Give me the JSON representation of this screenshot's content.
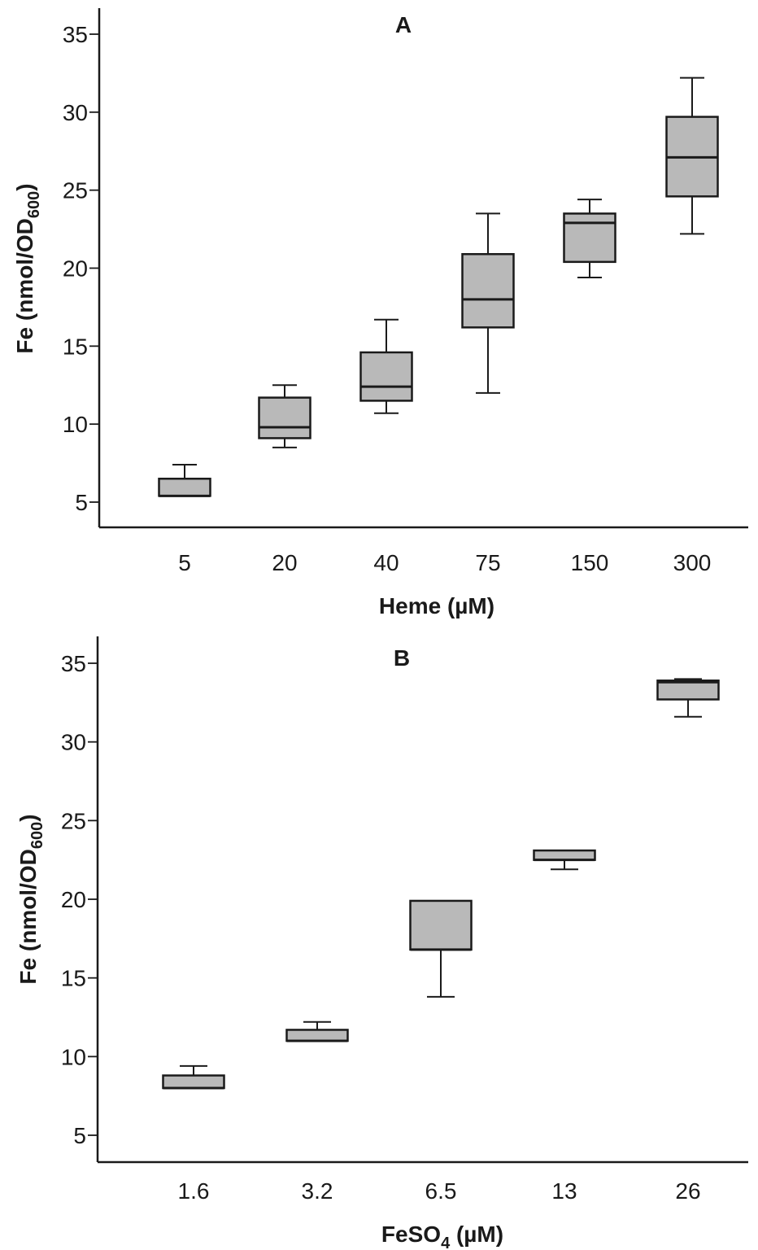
{
  "chart_data": [
    {
      "type": "box",
      "panel_label": "A",
      "xlabel": "Heme (µM)",
      "ylabel_main": "Fe (nmol/OD",
      "ylabel_sub": "600",
      "ylabel_end": ")",
      "ylim": [
        3.5,
        36.5
      ],
      "yticks": [
        5,
        10,
        15,
        20,
        25,
        30,
        35
      ],
      "categories": [
        "5",
        "20",
        "40",
        "75",
        "150",
        "300"
      ],
      "boxes": [
        {
          "min": 5.4,
          "q1": 5.4,
          "median": 5.4,
          "q3": 6.5,
          "max": 7.4
        },
        {
          "min": 8.5,
          "q1": 9.1,
          "median": 9.8,
          "q3": 11.7,
          "max": 12.5
        },
        {
          "min": 10.7,
          "q1": 11.5,
          "median": 12.4,
          "q3": 14.6,
          "max": 16.7
        },
        {
          "min": 12.0,
          "q1": 16.2,
          "median": 18.0,
          "q3": 20.9,
          "max": 23.5
        },
        {
          "min": 19.4,
          "q1": 20.4,
          "median": 22.9,
          "q3": 23.5,
          "max": 24.4
        },
        {
          "min": 22.2,
          "q1": 24.6,
          "median": 27.1,
          "q3": 29.7,
          "max": 32.2
        }
      ]
    },
    {
      "type": "box",
      "panel_label": "B",
      "xlabel_main": "FeSO",
      "xlabel_sub": "4",
      "xlabel_end": " (µM)",
      "ylabel_main": "Fe (nmol/OD",
      "ylabel_sub": "600",
      "ylabel_end": ")",
      "ylim": [
        3.5,
        36.5
      ],
      "yticks": [
        5,
        10,
        15,
        20,
        25,
        30,
        35
      ],
      "categories": [
        "1.6",
        "3.2",
        "6.5",
        "13",
        "26"
      ],
      "boxes": [
        {
          "min": 8.0,
          "q1": 8.0,
          "median": 8.0,
          "q3": 8.8,
          "max": 9.4
        },
        {
          "min": 11.0,
          "q1": 11.0,
          "median": 11.0,
          "q3": 11.7,
          "max": 12.2
        },
        {
          "min": 13.8,
          "q1": 16.8,
          "median": 16.8,
          "q3": 19.9,
          "max": 19.9
        },
        {
          "min": 21.9,
          "q1": 22.5,
          "median": 22.5,
          "q3": 23.1,
          "max": 23.1
        },
        {
          "min": 31.6,
          "q1": 32.7,
          "median": 33.8,
          "q3": 33.9,
          "max": 34.0
        }
      ]
    }
  ]
}
